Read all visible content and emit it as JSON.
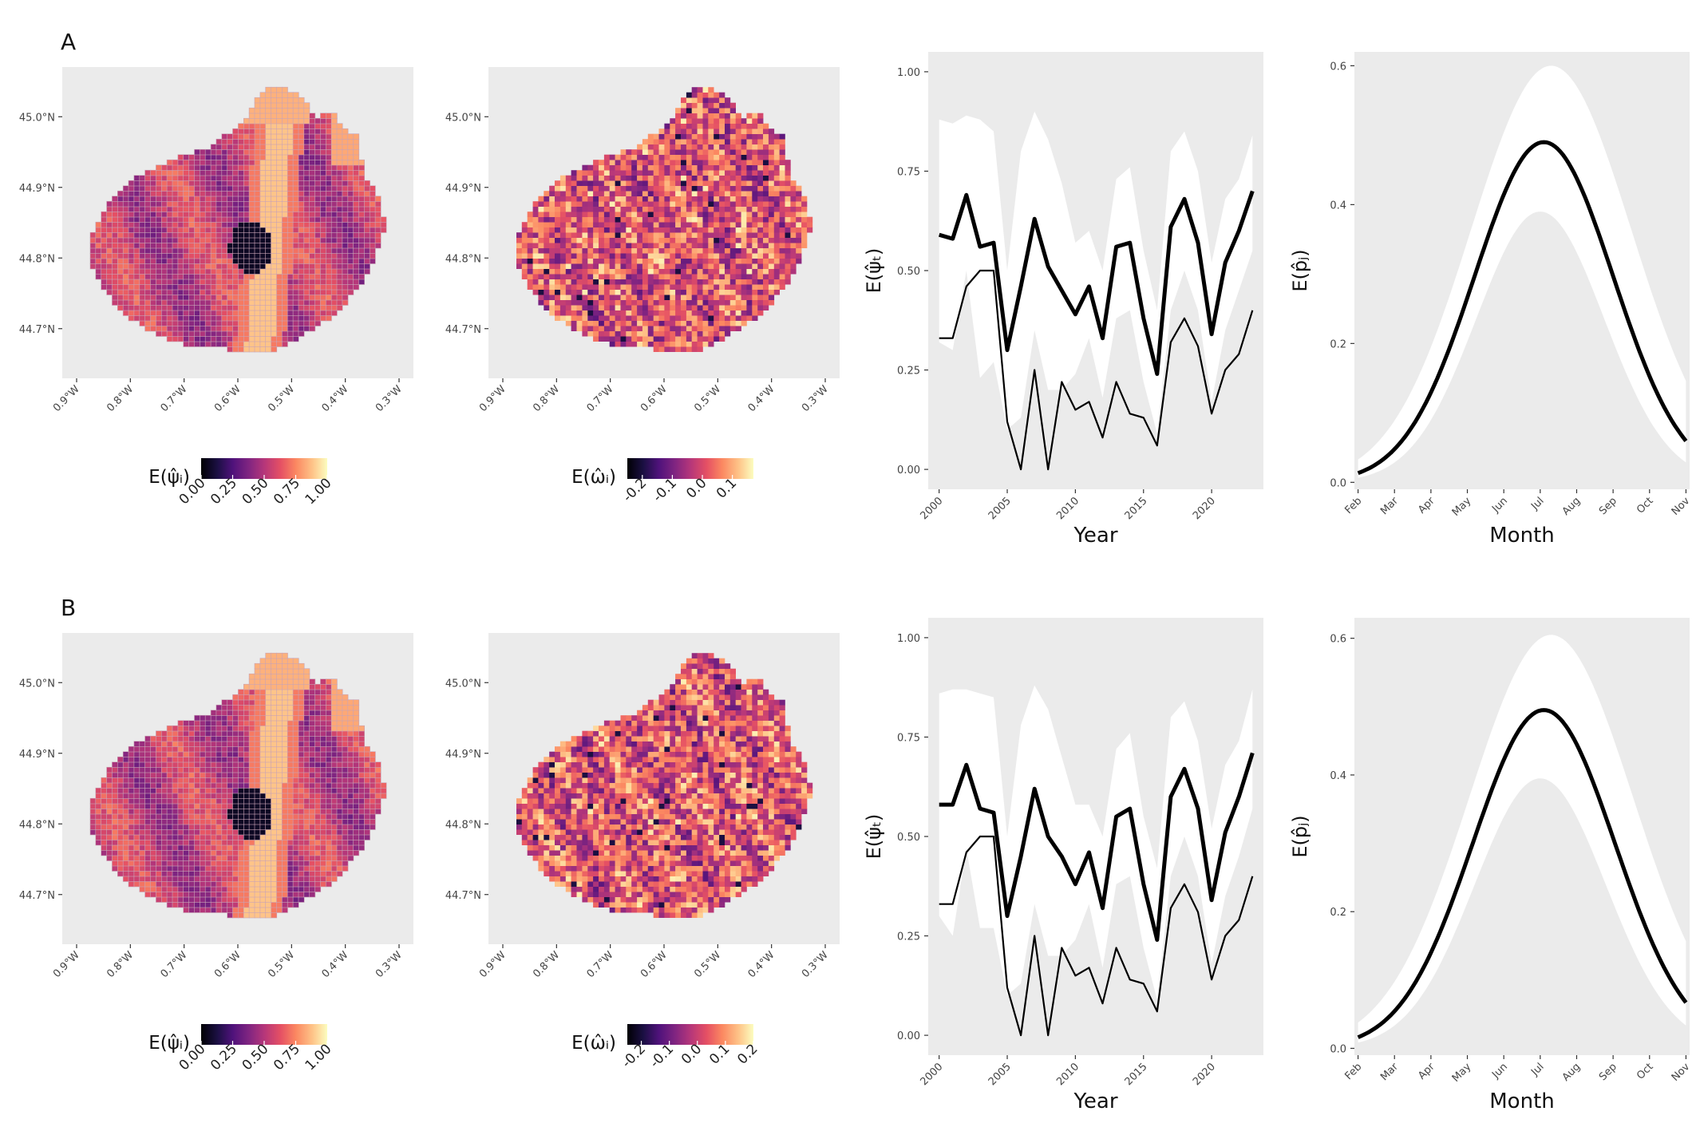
{
  "figure": {
    "panel_labels": [
      "A",
      "B"
    ]
  },
  "chart_data": [
    {
      "panel": "A",
      "type": "heatmap",
      "subtype": "map",
      "variable": "occupancy",
      "legend_title": "E(ψ̂ᵢ)",
      "legend_ticks": [
        "0.00",
        "0.25",
        "0.50",
        "0.75",
        "1.00"
      ],
      "colorbar_range": [
        0,
        1
      ],
      "colormap": "magma",
      "x_ticks": [
        "0.9°W",
        "0.8°W",
        "0.7°W",
        "0.6°W",
        "0.5°W",
        "0.4°W",
        "0.3°W"
      ],
      "y_ticks": [
        "44.7°N",
        "44.8°N",
        "44.9°N",
        "45.0°N"
      ],
      "xlim": [
        -0.9,
        -0.3
      ],
      "ylim": [
        44.65,
        45.05
      ]
    },
    {
      "panel": "A",
      "type": "heatmap",
      "subtype": "map",
      "variable": "spatial random effect",
      "legend_title": "E(ω̂ᵢ)",
      "legend_ticks": [
        "-0.2",
        "-0.1",
        "0.0",
        "0.1"
      ],
      "colorbar_range": [
        -0.25,
        0.17
      ],
      "colormap": "magma",
      "x_ticks": [
        "0.9°W",
        "0.8°W",
        "0.7°W",
        "0.6°W",
        "0.5°W",
        "0.4°W",
        "0.3°W"
      ],
      "y_ticks": [
        "44.7°N",
        "44.8°N",
        "44.9°N",
        "45.0°N"
      ],
      "xlim": [
        -0.9,
        -0.3
      ],
      "ylim": [
        44.65,
        45.05
      ]
    },
    {
      "panel": "A",
      "type": "line",
      "ylabel": "E(ψ̂ₜ)",
      "xlabel": "Year",
      "x": [
        2000,
        2001,
        2002,
        2003,
        2004,
        2005,
        2006,
        2007,
        2008,
        2009,
        2010,
        2011,
        2012,
        2013,
        2014,
        2015,
        2016,
        2017,
        2018,
        2019,
        2020,
        2021,
        2022,
        2023
      ],
      "xlim": [
        1999.2,
        2023.8
      ],
      "x_ticks": [
        "2000",
        "2005",
        "2010",
        "2015",
        "2020"
      ],
      "ylim": [
        -0.05,
        1.05
      ],
      "y_ticks": [
        "0.00",
        "0.25",
        "0.50",
        "0.75",
        "1.00"
      ],
      "series": [
        {
          "name": "mean",
          "style": "thick",
          "values": [
            0.59,
            0.58,
            0.69,
            0.56,
            0.57,
            0.3,
            0.46,
            0.63,
            0.51,
            0.45,
            0.39,
            0.46,
            0.33,
            0.56,
            0.57,
            0.38,
            0.24,
            0.61,
            0.68,
            0.57,
            0.34,
            0.52,
            0.6,
            0.7
          ]
        },
        {
          "name": "naive",
          "style": "thin",
          "values": [
            0.33,
            0.33,
            0.46,
            0.5,
            0.5,
            0.12,
            0.0,
            0.25,
            0.0,
            0.22,
            0.15,
            0.17,
            0.08,
            0.22,
            0.14,
            0.13,
            0.06,
            0.32,
            0.38,
            0.31,
            0.14,
            0.25,
            0.29,
            0.4
          ]
        },
        {
          "name": "ci_upper",
          "style": "ribbon",
          "values": [
            0.88,
            0.87,
            0.89,
            0.88,
            0.85,
            0.5,
            0.8,
            0.9,
            0.83,
            0.72,
            0.57,
            0.6,
            0.5,
            0.73,
            0.76,
            0.55,
            0.4,
            0.8,
            0.85,
            0.75,
            0.52,
            0.68,
            0.73,
            0.84
          ]
        },
        {
          "name": "ci_lower",
          "style": "ribbon",
          "values": [
            0.32,
            0.3,
            0.5,
            0.23,
            0.27,
            0.1,
            0.13,
            0.35,
            0.2,
            0.2,
            0.24,
            0.33,
            0.18,
            0.38,
            0.4,
            0.22,
            0.09,
            0.4,
            0.5,
            0.4,
            0.17,
            0.35,
            0.45,
            0.55
          ]
        }
      ]
    },
    {
      "panel": "A",
      "type": "line",
      "ylabel": "E(p̂ⱼ)",
      "xlabel": "Month",
      "x": [
        2,
        3,
        4,
        5,
        6,
        7,
        8,
        9,
        10,
        11
      ],
      "xlim": [
        1.9,
        11.1
      ],
      "x_ticks": [
        "Feb",
        "Mar",
        "Apr",
        "May",
        "Jun",
        "Jul",
        "Aug",
        "Sep",
        "Oct",
        "Nov"
      ],
      "ylim": [
        -0.01,
        0.62
      ],
      "y_ticks": [
        "0.0",
        "0.2",
        "0.4",
        "0.6"
      ],
      "series": [
        {
          "name": "mean",
          "style": "thick",
          "peak_x": 7.1,
          "peak_y": 0.49,
          "width": 1.9,
          "floor": 0.0,
          "end_y": 0.053
        },
        {
          "name": "ci_upper",
          "style": "ribbon",
          "peak_x": 7.3,
          "peak_y": 0.6,
          "width": 2.2,
          "floor": 0.0,
          "end_y": 0.18
        },
        {
          "name": "ci_lower",
          "style": "ribbon",
          "peak_x": 7.0,
          "peak_y": 0.39,
          "width": 1.75,
          "floor": 0.0,
          "end_y": 0.013
        }
      ]
    },
    {
      "panel": "B",
      "type": "heatmap",
      "subtype": "map",
      "variable": "occupancy",
      "legend_title": "E(ψ̂ᵢ)",
      "legend_ticks": [
        "0.00",
        "0.25",
        "0.50",
        "0.75",
        "1.00"
      ],
      "colorbar_range": [
        0,
        1
      ],
      "colormap": "magma",
      "x_ticks": [
        "0.9°W",
        "0.8°W",
        "0.7°W",
        "0.6°W",
        "0.5°W",
        "0.4°W",
        "0.3°W"
      ],
      "y_ticks": [
        "44.7°N",
        "44.8°N",
        "44.9°N",
        "45.0°N"
      ],
      "xlim": [
        -0.9,
        -0.3
      ],
      "ylim": [
        44.65,
        45.05
      ]
    },
    {
      "panel": "B",
      "type": "heatmap",
      "subtype": "map",
      "variable": "spatial random effect",
      "legend_title": "E(ω̂ᵢ)",
      "legend_ticks": [
        "-0.2",
        "-0.1",
        "0.0",
        "0.1",
        "0.2"
      ],
      "colorbar_range": [
        -0.25,
        0.2
      ],
      "colormap": "magma",
      "x_ticks": [
        "0.9°W",
        "0.8°W",
        "0.7°W",
        "0.6°W",
        "0.5°W",
        "0.4°W",
        "0.3°W"
      ],
      "y_ticks": [
        "44.7°N",
        "44.8°N",
        "44.9°N",
        "45.0°N"
      ],
      "xlim": [
        -0.9,
        -0.3
      ],
      "ylim": [
        44.65,
        45.05
      ]
    },
    {
      "panel": "B",
      "type": "line",
      "ylabel": "E(ψ̂ₜ)",
      "xlabel": "Year",
      "x": [
        2000,
        2001,
        2002,
        2003,
        2004,
        2005,
        2006,
        2007,
        2008,
        2009,
        2010,
        2011,
        2012,
        2013,
        2014,
        2015,
        2016,
        2017,
        2018,
        2019,
        2020,
        2021,
        2022,
        2023
      ],
      "xlim": [
        1999.2,
        2023.8
      ],
      "x_ticks": [
        "2000",
        "2005",
        "2010",
        "2015",
        "2020"
      ],
      "ylim": [
        -0.05,
        1.05
      ],
      "y_ticks": [
        "0.00",
        "0.25",
        "0.50",
        "0.75",
        "1.00"
      ],
      "series": [
        {
          "name": "mean",
          "style": "thick",
          "values": [
            0.58,
            0.58,
            0.68,
            0.57,
            0.56,
            0.3,
            0.45,
            0.62,
            0.5,
            0.45,
            0.38,
            0.46,
            0.32,
            0.55,
            0.57,
            0.38,
            0.24,
            0.6,
            0.67,
            0.57,
            0.34,
            0.51,
            0.6,
            0.71
          ]
        },
        {
          "name": "naive",
          "style": "thin",
          "values": [
            0.33,
            0.33,
            0.46,
            0.5,
            0.5,
            0.12,
            0.0,
            0.25,
            0.0,
            0.22,
            0.15,
            0.17,
            0.08,
            0.22,
            0.14,
            0.13,
            0.06,
            0.32,
            0.38,
            0.31,
            0.14,
            0.25,
            0.29,
            0.4
          ]
        },
        {
          "name": "ci_upper",
          "style": "ribbon",
          "values": [
            0.86,
            0.87,
            0.87,
            0.86,
            0.85,
            0.5,
            0.78,
            0.88,
            0.82,
            0.7,
            0.58,
            0.58,
            0.5,
            0.72,
            0.76,
            0.55,
            0.42,
            0.8,
            0.84,
            0.74,
            0.52,
            0.68,
            0.74,
            0.87
          ]
        },
        {
          "name": "ci_lower",
          "style": "ribbon",
          "values": [
            0.3,
            0.25,
            0.47,
            0.27,
            0.27,
            0.1,
            0.13,
            0.33,
            0.2,
            0.2,
            0.24,
            0.33,
            0.17,
            0.38,
            0.4,
            0.22,
            0.09,
            0.4,
            0.5,
            0.4,
            0.18,
            0.35,
            0.45,
            0.57
          ]
        }
      ]
    },
    {
      "panel": "B",
      "type": "line",
      "ylabel": "E(p̂ⱼ)",
      "xlabel": "Month",
      "x": [
        2,
        3,
        4,
        5,
        6,
        7,
        8,
        9,
        10,
        11
      ],
      "xlim": [
        1.9,
        11.1
      ],
      "x_ticks": [
        "Feb",
        "Mar",
        "Apr",
        "May",
        "Jun",
        "Jul",
        "Aug",
        "Sep",
        "Oct",
        "Nov"
      ],
      "ylim": [
        -0.01,
        0.63
      ],
      "y_ticks": [
        "0.0",
        "0.2",
        "0.4",
        "0.6"
      ],
      "series": [
        {
          "name": "mean",
          "style": "thick",
          "peak_x": 7.1,
          "peak_y": 0.495,
          "width": 1.95,
          "floor": 0.0,
          "end_y": 0.055
        },
        {
          "name": "ci_upper",
          "style": "ribbon",
          "peak_x": 7.3,
          "peak_y": 0.605,
          "width": 2.25,
          "floor": 0.0,
          "end_y": 0.18
        },
        {
          "name": "ci_lower",
          "style": "ribbon",
          "peak_x": 7.0,
          "peak_y": 0.395,
          "width": 1.8,
          "floor": 0.0,
          "end_y": 0.014
        }
      ]
    }
  ]
}
